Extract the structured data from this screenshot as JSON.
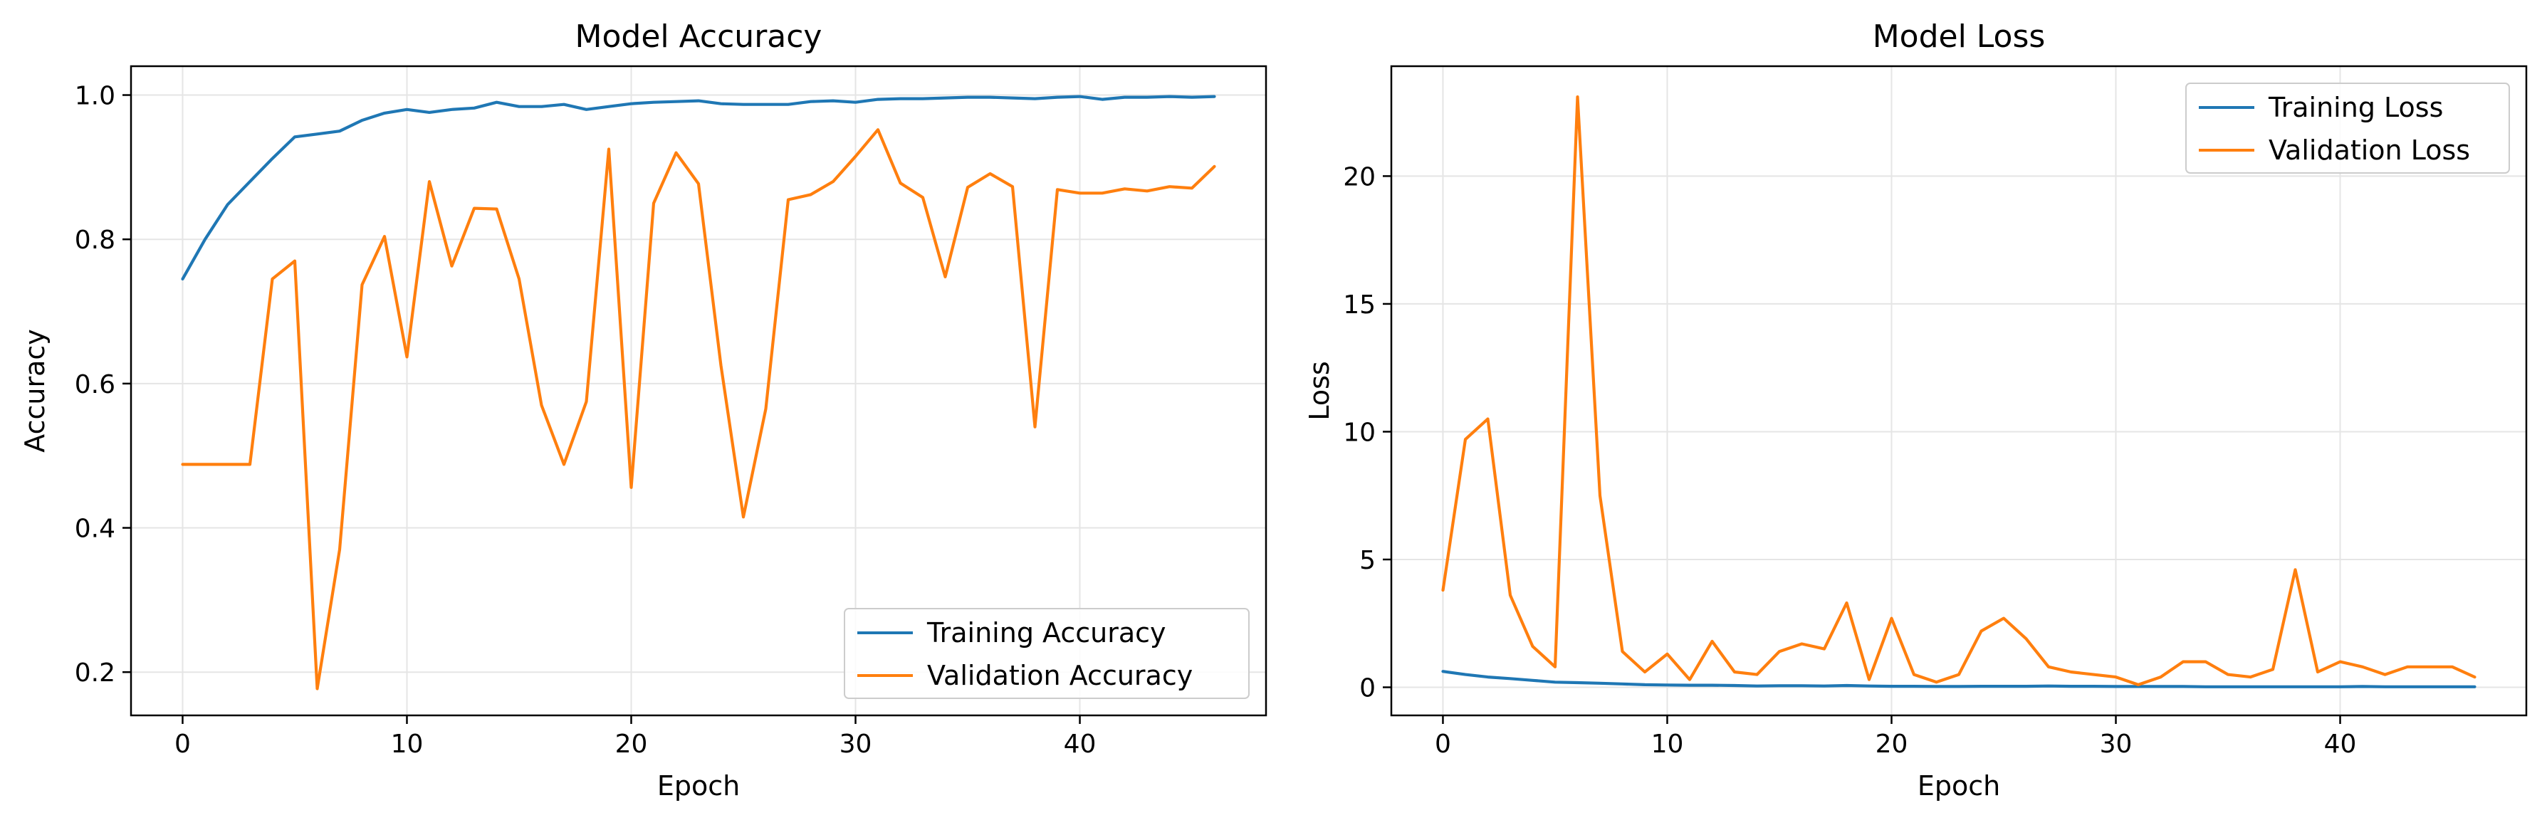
{
  "chart_data": [
    {
      "type": "line",
      "title": "Model Accuracy",
      "xlabel": "Epoch",
      "ylabel": "Accuracy",
      "xlim": [
        -2.3,
        48.3
      ],
      "ylim": [
        0.14,
        1.04
      ],
      "xticks": [
        0,
        10,
        20,
        30,
        40
      ],
      "yticks": [
        0.2,
        0.4,
        0.6,
        0.8,
        1.0
      ],
      "xtick_labels": [
        "0",
        "10",
        "20",
        "30",
        "40"
      ],
      "ytick_labels": [
        "0.2",
        "0.4",
        "0.6",
        "0.8",
        "1.0"
      ],
      "grid": true,
      "legend_position": "lower-right",
      "series": [
        {
          "name": "Training Accuracy",
          "color": "#1f77b4",
          "x": [
            0,
            1,
            2,
            3,
            4,
            5,
            6,
            7,
            8,
            9,
            10,
            11,
            12,
            13,
            14,
            15,
            16,
            17,
            18,
            19,
            20,
            21,
            22,
            23,
            24,
            25,
            26,
            27,
            28,
            29,
            30,
            31,
            32,
            33,
            34,
            35,
            36,
            37,
            38,
            39,
            40,
            41,
            42,
            43,
            44,
            45,
            46
          ],
          "values": [
            0.745,
            0.8,
            0.848,
            0.88,
            0.912,
            0.942,
            0.946,
            0.95,
            0.965,
            0.975,
            0.98,
            0.976,
            0.98,
            0.982,
            0.99,
            0.984,
            0.984,
            0.987,
            0.98,
            0.984,
            0.988,
            0.99,
            0.991,
            0.992,
            0.988,
            0.987,
            0.987,
            0.987,
            0.991,
            0.992,
            0.99,
            0.994,
            0.995,
            0.995,
            0.996,
            0.997,
            0.997,
            0.996,
            0.995,
            0.997,
            0.998,
            0.994,
            0.997,
            0.997,
            0.998,
            0.997,
            0.998
          ]
        },
        {
          "name": "Validation Accuracy",
          "color": "#ff7f0e",
          "x": [
            0,
            1,
            2,
            3,
            4,
            5,
            6,
            7,
            8,
            9,
            10,
            11,
            12,
            13,
            14,
            15,
            16,
            17,
            18,
            19,
            20,
            21,
            22,
            23,
            24,
            25,
            26,
            27,
            28,
            29,
            30,
            31,
            32,
            33,
            34,
            35,
            36,
            37,
            38,
            39,
            40,
            41,
            42,
            43,
            44,
            45,
            46
          ],
          "values": [
            0.488,
            0.488,
            0.488,
            0.488,
            0.745,
            0.77,
            0.177,
            0.37,
            0.737,
            0.804,
            0.637,
            0.88,
            0.763,
            0.843,
            0.842,
            0.745,
            0.57,
            0.488,
            0.575,
            0.925,
            0.456,
            0.85,
            0.92,
            0.877,
            0.625,
            0.415,
            0.565,
            0.855,
            0.862,
            0.88,
            0.915,
            0.952,
            0.878,
            0.858,
            0.748,
            0.872,
            0.891,
            0.873,
            0.54,
            0.869,
            0.864,
            0.864,
            0.87,
            0.867,
            0.873,
            0.871,
            0.901
          ]
        }
      ]
    },
    {
      "type": "line",
      "title": "Model Loss",
      "xlabel": "Epoch",
      "ylabel": "Loss",
      "xlim": [
        -2.3,
        48.3
      ],
      "ylim": [
        -1.1,
        24.3
      ],
      "xticks": [
        0,
        10,
        20,
        30,
        40
      ],
      "yticks": [
        0,
        5,
        10,
        15,
        20
      ],
      "xtick_labels": [
        "0",
        "10",
        "20",
        "30",
        "40"
      ],
      "ytick_labels": [
        "0",
        "5",
        "10",
        "15",
        "20"
      ],
      "grid": true,
      "legend_position": "upper-right",
      "series": [
        {
          "name": "Training Loss",
          "color": "#1f77b4",
          "x": [
            0,
            1,
            2,
            3,
            4,
            5,
            6,
            7,
            8,
            9,
            10,
            11,
            12,
            13,
            14,
            15,
            16,
            17,
            18,
            19,
            20,
            21,
            22,
            23,
            24,
            25,
            26,
            27,
            28,
            29,
            30,
            31,
            32,
            33,
            34,
            35,
            36,
            37,
            38,
            39,
            40,
            41,
            42,
            43,
            44,
            45,
            46
          ],
          "values": [
            0.62,
            0.5,
            0.4,
            0.34,
            0.27,
            0.2,
            0.18,
            0.16,
            0.13,
            0.1,
            0.09,
            0.08,
            0.08,
            0.07,
            0.05,
            0.06,
            0.06,
            0.05,
            0.07,
            0.05,
            0.04,
            0.04,
            0.03,
            0.03,
            0.04,
            0.04,
            0.04,
            0.05,
            0.04,
            0.04,
            0.03,
            0.03,
            0.03,
            0.03,
            0.02,
            0.02,
            0.02,
            0.02,
            0.02,
            0.02,
            0.02,
            0.03,
            0.02,
            0.02,
            0.02,
            0.02,
            0.02
          ]
        },
        {
          "name": "Validation Loss",
          "color": "#ff7f0e",
          "x": [
            0,
            1,
            2,
            3,
            4,
            5,
            6,
            7,
            8,
            9,
            10,
            11,
            12,
            13,
            14,
            15,
            16,
            17,
            18,
            19,
            20,
            21,
            22,
            23,
            24,
            25,
            26,
            27,
            28,
            29,
            30,
            31,
            32,
            33,
            34,
            35,
            36,
            37,
            38,
            39,
            40,
            41,
            42,
            43,
            44,
            45,
            46
          ],
          "values": [
            3.8,
            9.7,
            10.5,
            3.6,
            1.6,
            0.8,
            23.1,
            7.5,
            1.4,
            0.6,
            1.3,
            0.3,
            1.8,
            0.6,
            0.5,
            1.4,
            1.7,
            1.5,
            3.3,
            0.3,
            2.7,
            0.5,
            0.2,
            0.5,
            2.2,
            2.7,
            1.9,
            0.8,
            0.6,
            0.5,
            0.4,
            0.1,
            0.4,
            1.0,
            1.0,
            0.5,
            0.4,
            0.7,
            4.6,
            0.6,
            1.0,
            0.8,
            0.5,
            0.8,
            0.8,
            0.8,
            0.4
          ]
        }
      ]
    }
  ]
}
